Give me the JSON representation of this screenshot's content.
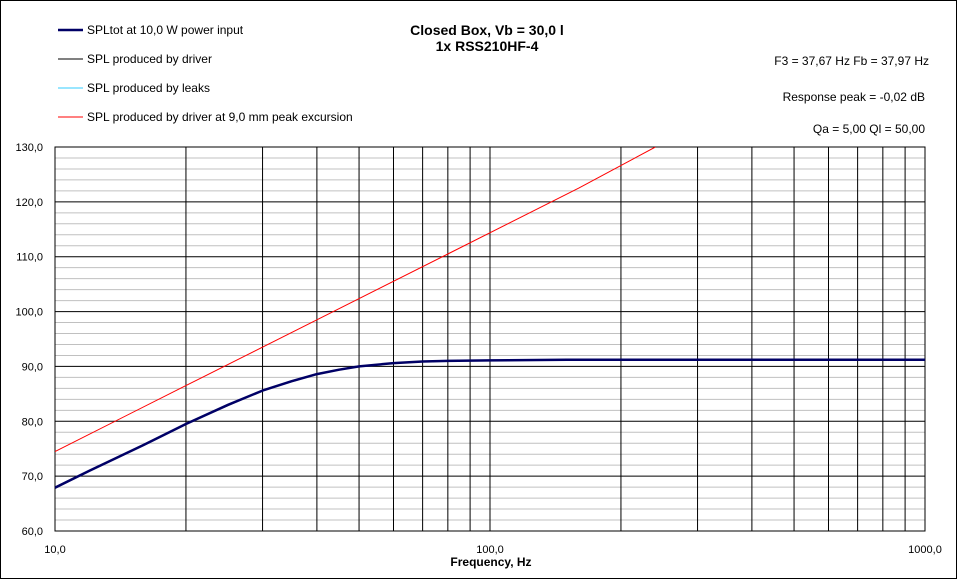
{
  "chart_data": {
    "type": "line",
    "title": "Closed Box, Vb = 30,0 l",
    "subtitle": "1x RSS210HF-4",
    "xlabel": "Frequency, Hz",
    "ylabel": "",
    "x_scale": "log",
    "xlim": [
      10,
      1000
    ],
    "ylim": [
      60,
      130
    ],
    "grid": true,
    "legend_position": "top-left",
    "y_ticks": [
      "60,0",
      "70,0",
      "80,0",
      "90,0",
      "100,0",
      "110,0",
      "120,0",
      "130,0"
    ],
    "x_ticks": [
      "10,0",
      "100,0",
      "1000,0"
    ],
    "info": [
      "F3 = 37,67  Hz   Fb = 37,97  Hz",
      "Response peak = -0,02  dB",
      "Qa = 5,00   Ql = 50,00"
    ],
    "series": [
      {
        "name": "SPLtot at 10,0 W power input",
        "color": "#000066",
        "x": [
          10,
          12,
          14,
          16,
          18,
          20,
          25,
          30,
          35,
          40,
          45,
          50,
          60,
          70,
          80,
          100,
          150,
          200,
          300,
          500,
          1000
        ],
        "y": [
          67.9,
          71.0,
          73.5,
          75.7,
          77.7,
          79.5,
          83.0,
          85.6,
          87.3,
          88.6,
          89.4,
          90.0,
          90.6,
          90.9,
          91.0,
          91.1,
          91.2,
          91.2,
          91.2,
          91.2,
          91.2
        ]
      },
      {
        "name": "SPL produced by driver",
        "color": "#000000",
        "x": [
          10,
          20,
          30,
          40,
          50,
          60,
          80,
          100,
          200,
          500,
          1000
        ],
        "y": [
          67.9,
          79.5,
          85.6,
          88.6,
          90.0,
          90.6,
          91.0,
          91.1,
          91.2,
          91.2,
          91.2
        ]
      },
      {
        "name": "SPL produced by leaks",
        "color": "#33ccff",
        "x": [],
        "y": []
      },
      {
        "name": "SPL produced by driver at 9,0 mm peak excursion",
        "color": "#ff0000",
        "x": [
          10,
          20,
          40,
          80,
          160,
          240
        ],
        "y": [
          74.5,
          86.5,
          98.5,
          110.5,
          122.5,
          130.0
        ]
      }
    ]
  }
}
